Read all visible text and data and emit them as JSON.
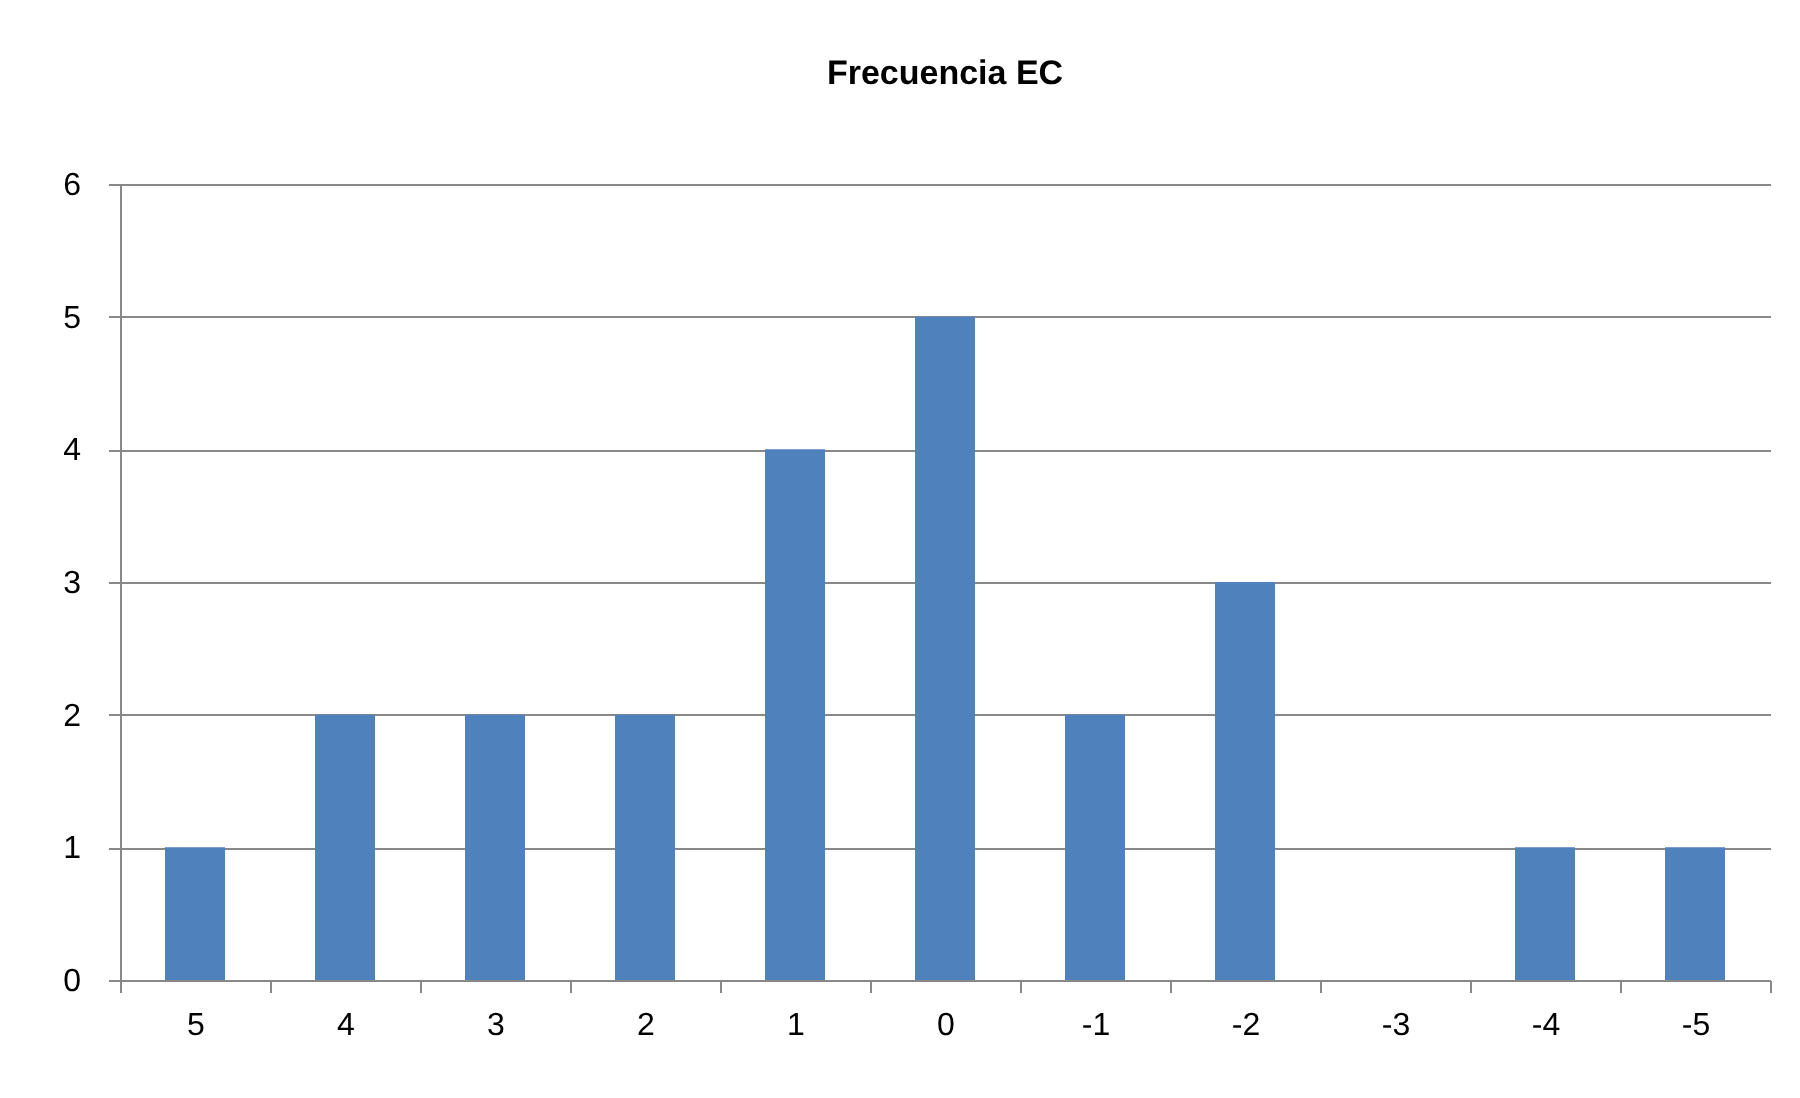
{
  "chart_data": {
    "type": "bar",
    "title": "Frecuencia EC",
    "categories": [
      "5",
      "4",
      "3",
      "2",
      "1",
      "0",
      "-1",
      "-2",
      "-3",
      "-4",
      "-5"
    ],
    "values": [
      1,
      2,
      2,
      2,
      4,
      5,
      2,
      3,
      0,
      1,
      1
    ],
    "color": "#4f81bd",
    "ylim": [
      0,
      6
    ],
    "yticks": [
      0,
      1,
      2,
      3,
      4,
      5,
      6
    ],
    "grid": "y"
  }
}
